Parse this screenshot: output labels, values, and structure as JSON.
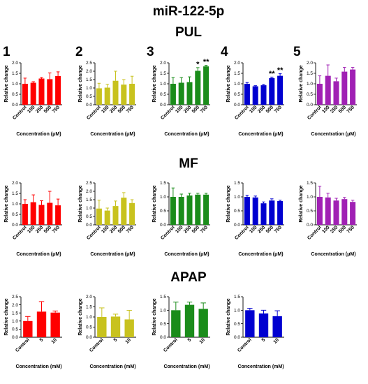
{
  "figure": {
    "title": "miR-122-5p",
    "sections": [
      "PUL",
      "MF",
      "APAP"
    ]
  },
  "colors": {
    "red": "#ff0000",
    "olive": "#c8c21e",
    "green": "#1a8c1a",
    "blue": "#0000d0",
    "purple": "#a020b4"
  },
  "chart_data": [
    {
      "id": "pul-1",
      "type": "bar",
      "section": "PUL",
      "panel_label": "1",
      "color": "red",
      "categories": [
        "Control",
        "100",
        "250",
        "500",
        "750"
      ],
      "values": [
        1.0,
        1.05,
        1.25,
        1.22,
        1.37
      ],
      "errors": [
        0.27,
        0.05,
        0.05,
        0.3,
        0.2
      ],
      "ylim": [
        0,
        2.0
      ],
      "yticks": [
        "0.0",
        "0.5",
        "1.0",
        "1.5",
        "2.0"
      ],
      "ylabel": "Relative change",
      "xlabel": "Concentration (μM)",
      "annotations": [
        "",
        "",
        "",
        "",
        ""
      ]
    },
    {
      "id": "pul-2",
      "type": "bar",
      "section": "PUL",
      "panel_label": "2",
      "color": "olive",
      "categories": [
        "Control",
        "100",
        "250",
        "500",
        "750"
      ],
      "values": [
        0.98,
        1.02,
        1.43,
        1.2,
        1.25
      ],
      "errors": [
        0.3,
        0.2,
        0.57,
        0.3,
        0.45
      ],
      "ylim": [
        0,
        2.5
      ],
      "yticks": [
        "0.0",
        "0.5",
        "1.0",
        "1.5",
        "2.0",
        "2.5"
      ],
      "ylabel": "Relative change",
      "xlabel": "Concentration (μM)",
      "annotations": [
        "",
        "",
        "",
        "",
        ""
      ]
    },
    {
      "id": "pul-3",
      "type": "bar",
      "section": "PUL",
      "panel_label": "3",
      "color": "green",
      "categories": [
        "Control",
        "100",
        "250",
        "500",
        "750"
      ],
      "values": [
        1.0,
        1.05,
        1.08,
        1.62,
        1.83
      ],
      "errors": [
        0.3,
        0.25,
        0.25,
        0.15,
        0.05
      ],
      "ylim": [
        0,
        2.0
      ],
      "yticks": [
        "0.0",
        "0.5",
        "1.0",
        "1.5",
        "2.0"
      ],
      "ylabel": "Relative change",
      "xlabel": "Concentration (μM)",
      "annotations": [
        "",
        "",
        "",
        "*",
        "**"
      ]
    },
    {
      "id": "pul-4",
      "type": "bar",
      "section": "PUL",
      "panel_label": "4",
      "color": "blue",
      "categories": [
        "Control",
        "100",
        "250",
        "500",
        "750"
      ],
      "values": [
        1.0,
        0.88,
        0.93,
        1.27,
        1.38
      ],
      "errors": [
        0.06,
        0.03,
        0.03,
        0.05,
        0.1
      ],
      "ylim": [
        0,
        2.0
      ],
      "yticks": [
        "0.0",
        "0.5",
        "1.0",
        "1.5",
        "2.0"
      ],
      "ylabel": "Relative change",
      "xlabel": "Concentration (μM)",
      "annotations": [
        "",
        "",
        "",
        "**",
        "**"
      ]
    },
    {
      "id": "pul-5",
      "type": "bar",
      "section": "PUL",
      "panel_label": "5",
      "color": "purple",
      "categories": [
        "Control",
        "100",
        "250",
        "500",
        "750"
      ],
      "values": [
        1.0,
        1.38,
        1.12,
        1.58,
        1.68
      ],
      "errors": [
        0.38,
        0.52,
        0.15,
        0.2,
        0.1
      ],
      "ylim": [
        0,
        2.0
      ],
      "yticks": [
        "0.0",
        "0.5",
        "1.0",
        "1.5",
        "2.0"
      ],
      "ylabel": "Relative change",
      "xlabel": "Concentration (μM)",
      "annotations": [
        "",
        "",
        "",
        "",
        ""
      ]
    },
    {
      "id": "mf-1",
      "type": "bar",
      "section": "MF",
      "panel_label": "",
      "color": "red",
      "categories": [
        "Control",
        "100",
        "250",
        "500",
        "750"
      ],
      "values": [
        1.0,
        1.08,
        0.95,
        1.05,
        0.93
      ],
      "errors": [
        0.2,
        0.35,
        0.2,
        0.55,
        0.3
      ],
      "ylim": [
        0,
        2.0
      ],
      "yticks": [
        "0.0",
        "0.5",
        "1.0",
        "1.5",
        "2.0"
      ],
      "ylabel": "Relative change",
      "xlabel": "Concentration (μM)",
      "annotations": [
        "",
        "",
        "",
        "",
        ""
      ]
    },
    {
      "id": "mf-2",
      "type": "bar",
      "section": "MF",
      "panel_label": "",
      "color": "olive",
      "categories": [
        "Control",
        "100",
        "250",
        "500",
        "750"
      ],
      "values": [
        0.97,
        0.85,
        1.12,
        1.62,
        1.3
      ],
      "errors": [
        0.5,
        0.15,
        0.3,
        0.3,
        0.2
      ],
      "ylim": [
        0,
        2.5
      ],
      "yticks": [
        "0.0",
        "0.5",
        "1.0",
        "1.5",
        "2.0",
        "2.5"
      ],
      "ylabel": "Relative change",
      "xlabel": "Concentration (μM)",
      "annotations": [
        "",
        "",
        "",
        "",
        ""
      ]
    },
    {
      "id": "mf-3",
      "type": "bar",
      "section": "MF",
      "panel_label": "",
      "color": "green",
      "categories": [
        "Control",
        "100",
        "250",
        "500",
        "750"
      ],
      "values": [
        1.0,
        1.0,
        1.05,
        1.08,
        1.08
      ],
      "errors": [
        0.32,
        0.1,
        0.08,
        0.05,
        0.05
      ],
      "ylim": [
        0,
        1.5
      ],
      "yticks": [
        "0.0",
        "0.5",
        "1.0",
        "1.5"
      ],
      "ylabel": "Relative change",
      "xlabel": "Concentration (μM)",
      "annotations": [
        "",
        "",
        "",
        "",
        ""
      ]
    },
    {
      "id": "mf-4",
      "type": "bar",
      "section": "MF",
      "panel_label": "",
      "color": "blue",
      "categories": [
        "Control",
        "100",
        "250",
        "500",
        "750"
      ],
      "values": [
        1.0,
        0.98,
        0.77,
        0.87,
        0.85
      ],
      "errors": [
        0.06,
        0.05,
        0.05,
        0.06,
        0.03
      ],
      "ylim": [
        0,
        1.5
      ],
      "yticks": [
        "0.0",
        "0.5",
        "1.0",
        "1.5"
      ],
      "ylabel": "Relative change",
      "xlabel": "Concentration (μM)",
      "annotations": [
        "",
        "",
        "",
        "",
        ""
      ]
    },
    {
      "id": "mf-5",
      "type": "bar",
      "section": "MF",
      "panel_label": "",
      "color": "purple",
      "categories": [
        "Control",
        "100",
        "250",
        "500",
        "750"
      ],
      "values": [
        1.0,
        0.98,
        0.87,
        0.92,
        0.82
      ],
      "errors": [
        0.38,
        0.15,
        0.08,
        0.06,
        0.06
      ],
      "ylim": [
        0,
        1.5
      ],
      "yticks": [
        "0.0",
        "0.5",
        "1.0",
        "1.5"
      ],
      "ylabel": "Relative change",
      "xlabel": "Concentration (μM)",
      "annotations": [
        "",
        "",
        "",
        "",
        ""
      ]
    },
    {
      "id": "apap-1",
      "type": "bar",
      "section": "APAP",
      "panel_label": "",
      "color": "red",
      "categories": [
        "Control",
        "5",
        "10"
      ],
      "values": [
        1.0,
        1.58,
        1.52
      ],
      "errors": [
        0.28,
        0.62,
        0.1
      ],
      "ylim": [
        0,
        2.5
      ],
      "yticks": [
        "0.0",
        "0.5",
        "1.0",
        "1.5",
        "2.0",
        "2.5"
      ],
      "ylabel": "Relative change",
      "xlabel": "Concentration (mM)",
      "annotations": [
        "",
        "",
        ""
      ]
    },
    {
      "id": "apap-2",
      "type": "bar",
      "section": "APAP",
      "panel_label": "",
      "color": "olive",
      "categories": [
        "Control",
        "5",
        "10"
      ],
      "values": [
        1.0,
        1.02,
        0.88
      ],
      "errors": [
        0.45,
        0.12,
        0.45
      ],
      "ylim": [
        0,
        2.0
      ],
      "yticks": [
        "0.0",
        "0.5",
        "1.0",
        "1.5",
        "2.0"
      ],
      "ylabel": "Relative change",
      "xlabel": "Concentration (mM)",
      "annotations": [
        "",
        "",
        ""
      ]
    },
    {
      "id": "apap-3",
      "type": "bar",
      "section": "APAP",
      "panel_label": "",
      "color": "green",
      "categories": [
        "Control",
        "5",
        "10"
      ],
      "values": [
        1.0,
        1.2,
        1.05
      ],
      "errors": [
        0.3,
        0.1,
        0.22
      ],
      "ylim": [
        0,
        1.5
      ],
      "yticks": [
        "0.0",
        "0.5",
        "1.0",
        "1.5"
      ],
      "ylabel": "Relative change",
      "xlabel": "Concentration (mM)",
      "annotations": [
        "",
        "",
        ""
      ]
    },
    {
      "id": "apap-4",
      "type": "bar",
      "section": "APAP",
      "panel_label": "",
      "color": "blue",
      "categories": [
        "Control",
        "5",
        "10"
      ],
      "values": [
        1.0,
        0.88,
        0.78
      ],
      "errors": [
        0.07,
        0.12,
        0.2
      ],
      "ylim": [
        0,
        1.5
      ],
      "yticks": [
        "0.0",
        "0.5",
        "1.0",
        "1.5"
      ],
      "ylabel": "Relative change",
      "xlabel": "Concentration (mM)",
      "annotations": [
        "",
        "",
        ""
      ]
    }
  ]
}
